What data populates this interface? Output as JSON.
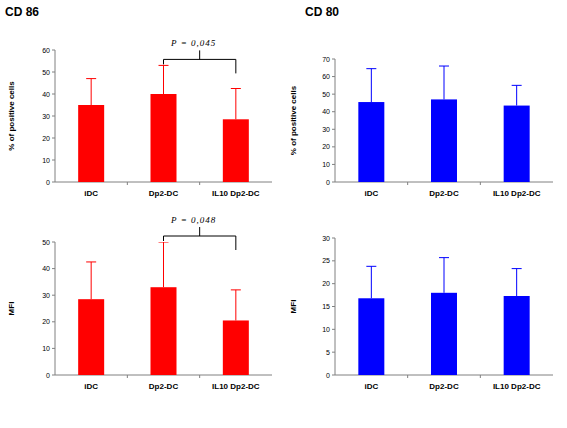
{
  "chart_data": [
    {
      "type": "bar",
      "title": "CD 86",
      "y_label": "% of positive cells",
      "categories": [
        "iDC",
        "Dp2-DC",
        "IL10 Dp2-DC"
      ],
      "values": [
        35,
        40,
        28.5
      ],
      "errors": [
        12,
        13,
        14
      ],
      "color": "#ff0000",
      "ylim": [
        0,
        60
      ],
      "yticks": [
        0,
        10,
        20,
        30,
        40,
        50,
        60
      ],
      "grid": false,
      "annotations": [
        {
          "text": "P = 0,045",
          "categories": [
            "Dp2-DC",
            "IL10 Dp2-DC"
          ]
        }
      ]
    },
    {
      "type": "bar",
      "title": "CD 80",
      "y_label": "% of positive cells",
      "categories": [
        "iDC",
        "Dp2-DC",
        "IL10 Dp2-DC"
      ],
      "values": [
        45.5,
        47,
        43.5
      ],
      "errors": [
        19,
        19,
        11.5
      ],
      "color": "#0000ff",
      "ylim": [
        0,
        70
      ],
      "yticks": [
        0,
        10,
        20,
        30,
        40,
        50,
        60,
        70
      ],
      "grid": false
    },
    {
      "type": "bar",
      "y_label": "MFI",
      "categories": [
        "iDC",
        "Dp2-DC",
        "IL10 Dp2-DC"
      ],
      "values": [
        28.5,
        33,
        20.5
      ],
      "errors": [
        14,
        17,
        11.5
      ],
      "color": "#ff0000",
      "ylim": [
        0,
        50
      ],
      "yticks": [
        0,
        10,
        20,
        30,
        40,
        50
      ],
      "grid": false,
      "annotations": [
        {
          "text": "P = 0,048",
          "categories": [
            "Dp2-DC",
            "IL10 Dp2-DC"
          ]
        }
      ]
    },
    {
      "type": "bar",
      "y_label": "MFI",
      "categories": [
        "iDC",
        "Dp2-DC",
        "IL10 Dp2-DC"
      ],
      "values": [
        16.8,
        18,
        17.3
      ],
      "errors": [
        7,
        7.7,
        6
      ],
      "color": "#0000ff",
      "ylim": [
        0,
        30
      ],
      "yticks": [
        0,
        5,
        10,
        15,
        20,
        25,
        30
      ],
      "grid": false
    }
  ]
}
